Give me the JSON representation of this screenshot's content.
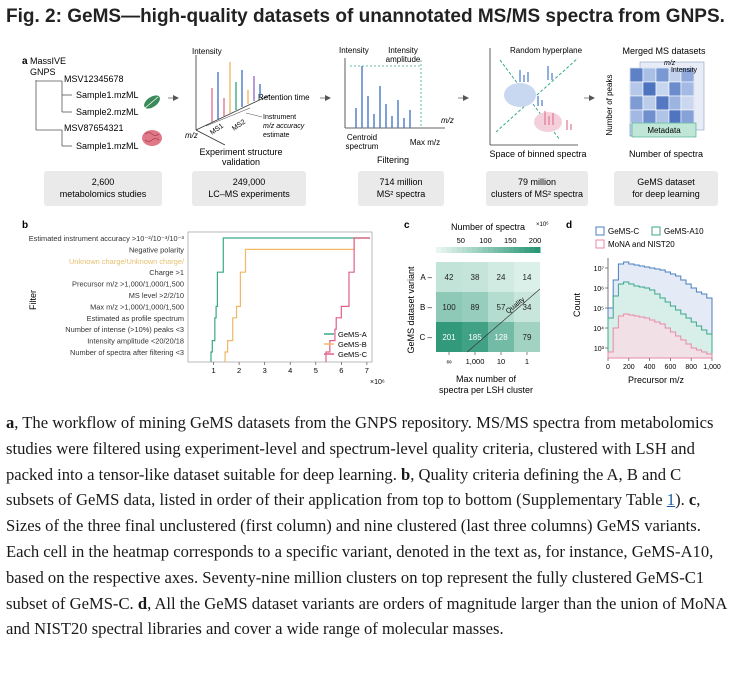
{
  "title": "Fig. 2: GeMS—high-quality datasets of unannotated MS/MS spectra from GNPS.",
  "panel_a": {
    "letter": "a",
    "tree": {
      "root1": "MassIVE",
      "root2": "GNPS",
      "items": [
        "MSV12345678",
        "Sample1.mzML",
        "Sample2.mzML",
        "MSV87654321",
        "Sample1.mzML"
      ]
    },
    "plot1": {
      "y": "Intensity",
      "mz": "m/z",
      "rt": "Retention time",
      "ms1": "MS1",
      "ms2": "MS2",
      "note1": "Instrument",
      "note2": "m/z accuracy",
      "note3": "estimate",
      "cap1": "Experiment structure",
      "cap2": "validation"
    },
    "plot2": {
      "y": "Intensity",
      "amp1": "Intensity",
      "amp2": "amplitude",
      "mz": "m/z",
      "cen1": "Centroid",
      "cen2": "spectrum",
      "max": "Max m/z",
      "cap": "Filtering"
    },
    "plot3": {
      "hyper": "Random hyperplane",
      "cap": "Space of binned spectra"
    },
    "plot4": {
      "title": "Merged MS datasets",
      "mz": "m/z",
      "intensity": "Intensity",
      "ylab": "Number of peaks",
      "meta": "Metadata",
      "xlab": "Number of spectra"
    },
    "stats": [
      {
        "l1": "2,600",
        "l2": "metabolomics studies"
      },
      {
        "l1": "249,000",
        "l2": "LC–MS experiments"
      },
      {
        "l1": "714 million",
        "l2": "MS² spectra"
      },
      {
        "l1": "79 million",
        "l2": "clusters of MS² spectra"
      },
      {
        "l1": "GeMS dataset",
        "l2": "for deep learning"
      }
    ]
  },
  "panel_b": {
    "letter": "b",
    "ylabel": "Filter",
    "x_exp": "×10⁶",
    "filters": [
      "Estimated instrument accuracy >10⁻²/10⁻³/10⁻³",
      "Negative polarity",
      "Unknown charge/Unknown charge/",
      "Charge >1",
      "Precursor m/z >1,000/1,000/1,500",
      "MS level >2/2/10",
      "Max m/z >1,000/1,000/1,500",
      "Estimated as profile spectrum",
      "Number of intense (>10%) peaks <3",
      "Intensity amplitude <20/20/18",
      "Number of spectra after filtering <3"
    ],
    "legend": [
      "GeMS-A",
      "GeMS-B",
      "GeMS-C"
    ]
  },
  "panel_c": {
    "letter": "c",
    "top_label": "Number of spectra",
    "top_exp": "×10⁶",
    "ylabel": "GeMS dataset variant",
    "xlabel1": "Max number of",
    "xlabel2": "spectra per LSH cluster",
    "quality": "Quality"
  },
  "panel_d": {
    "letter": "d",
    "legend": [
      "GeMS-C",
      "GeMS-A10",
      "MoNA and NIST20"
    ],
    "xlabel": "Precursor m/z",
    "ylabel": "Count"
  },
  "chart_data": [
    {
      "type": "line",
      "title": "b",
      "xlabel": "",
      "x_exponent": "×10⁶",
      "ylabel": "Filter",
      "xlim": [
        0,
        7.2
      ],
      "x_ticks": [
        "1",
        "2",
        "3",
        "4",
        "5",
        "6",
        "7"
      ],
      "categories": [
        "Estimated instrument accuracy",
        "Negative polarity",
        "Unknown charge",
        "Charge >1",
        "Precursor m/z",
        "MS level",
        "Max m/z",
        "Estimated as profile spectrum",
        "Number of intense (>10%) peaks <3",
        "Intensity amplitude",
        "Number of spectra after filtering <3"
      ],
      "series": [
        {
          "name": "GeMS-A",
          "color": "#3aa88a",
          "values": [
            1.38,
            1.38,
            1.38,
            1.15,
            1.15,
            1.15,
            1.1,
            1.05,
            1.05,
            0.95,
            0.9
          ]
        },
        {
          "name": "GeMS-B",
          "color": "#f2b866",
          "values": [
            6.5,
            2.25,
            2.25,
            2.05,
            2.05,
            2.05,
            1.9,
            1.75,
            1.75,
            1.55,
            1.45
          ]
        },
        {
          "name": "GeMS-C",
          "color": "#e0608a",
          "values": [
            6.5,
            6.5,
            6.5,
            6.3,
            6.3,
            6.3,
            6.0,
            5.8,
            5.75,
            5.55,
            5.4
          ]
        }
      ]
    },
    {
      "type": "heatmap",
      "title": "c",
      "rows": [
        "A",
        "B",
        "C"
      ],
      "columns": [
        "∞",
        "1,000",
        "10",
        "1"
      ],
      "values": [
        [
          42,
          38,
          24,
          14
        ],
        [
          100,
          89,
          57,
          34
        ],
        [
          201,
          185,
          128,
          79
        ]
      ],
      "colorbar_ticks": [
        "50",
        "100",
        "150",
        "200"
      ],
      "colorbar_label": "Number of spectra ×10⁶",
      "xlabel": "Max number of spectra per LSH cluster",
      "ylabel": "GeMS dataset variant"
    },
    {
      "type": "area",
      "title": "d",
      "xlabel": "Precursor m/z",
      "ylabel": "Count",
      "x_ticks": [
        "0",
        "200",
        "400",
        "600",
        "800",
        "1,000"
      ],
      "y_ticks": [
        "10⁷",
        "10⁶",
        "10⁵",
        "10⁴",
        "10³"
      ],
      "xlim": [
        0,
        1000
      ],
      "ylim_log10": [
        2.5,
        7.5
      ],
      "x": [
        0,
        50,
        100,
        150,
        200,
        250,
        300,
        350,
        400,
        450,
        500,
        550,
        600,
        650,
        700,
        750,
        800,
        850,
        900,
        950,
        1000
      ],
      "series": [
        {
          "name": "GeMS-C",
          "color": "#4a7fc0",
          "values_log10": [
            5.0,
            6.4,
            7.2,
            7.3,
            7.2,
            7.15,
            7.1,
            7.05,
            7.0,
            6.95,
            6.9,
            6.8,
            6.7,
            6.6,
            6.4,
            6.2,
            6.0,
            5.8,
            5.7,
            5.5,
            4.2
          ]
        },
        {
          "name": "GeMS-A10",
          "color": "#3aa88a",
          "values_log10": [
            4.5,
            5.6,
            6.2,
            6.3,
            6.2,
            6.1,
            6.05,
            6.0,
            5.9,
            5.7,
            5.5,
            5.3,
            5.1,
            4.9,
            4.7,
            4.5,
            4.3,
            4.1,
            3.9,
            3.7,
            3.3
          ]
        },
        {
          "name": "MoNA and NIST20",
          "color": "#e88aa8",
          "values_log10": [
            2.8,
            4.0,
            4.6,
            4.7,
            4.65,
            4.6,
            4.55,
            4.5,
            4.4,
            4.3,
            4.2,
            4.0,
            3.8,
            3.6,
            3.4,
            3.2,
            3.0,
            2.9,
            2.8,
            2.7,
            2.6
          ]
        }
      ]
    }
  ],
  "caption": {
    "a_letter": "a",
    "a_text": ", The workflow of mining GeMS datasets from the GNPS repository. MS/MS spectra from metabolomics studies were filtered using experiment-level and spectrum-level quality criteria, clustered with LSH and packed into a tensor-like dataset suitable for deep learning. ",
    "b_letter": "b",
    "b_text": ", Quality criteria defining the A, B and C subsets of GeMS data, listed in order of their application from top to bottom (Supplementary Table ",
    "link": "1",
    "b_text2": "). ",
    "c_letter": "c",
    "c_text": ", Sizes of the three final unclustered (first column) and nine clustered (last three columns) GeMS variants. Each cell in the heatmap corresponds to a specific variant, denoted in the text as, for instance, GeMS-A10, based on the respective axes. Seventy-nine million clusters on top represent the fully clustered GeMS-C1 subset of GeMS-C. ",
    "d_letter": "d",
    "d_text": ", All the GeMS dataset variants are orders of magnitude larger than the union of MoNA and NIST20 spectral libraries and cover a wide range of molecular masses."
  }
}
